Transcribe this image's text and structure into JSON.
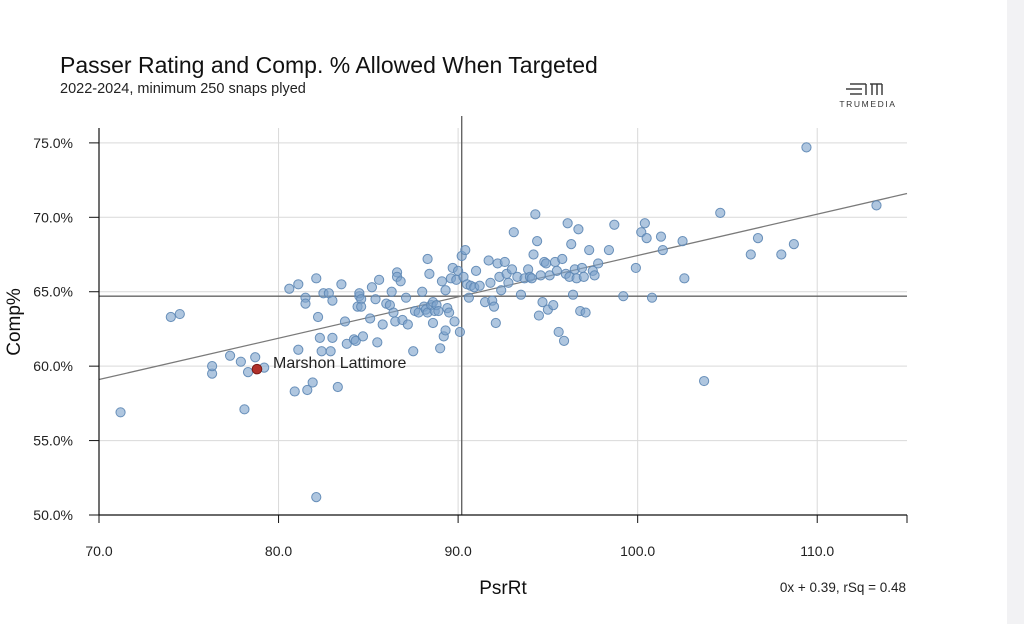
{
  "header": {
    "title": "Passer Rating and Comp. % Allowed When Targeted",
    "subtitle": "2022-2024, minimum 250 snaps plyed",
    "brand": "TRUMEDIA"
  },
  "colors": {
    "point": "#7ea3cb",
    "highlight": "#b0302a",
    "gridline": "#d9d9d9",
    "reference": "#666666"
  },
  "chart_data": {
    "type": "scatter",
    "xlabel": "PsrRt",
    "ylabel": "Comp%",
    "xlim": [
      70,
      115
    ],
    "ylim": [
      50,
      76
    ],
    "xticks": [
      {
        "value": 70,
        "label": "70.0"
      },
      {
        "value": 80,
        "label": "80.0"
      },
      {
        "value": 90,
        "label": "90.0"
      },
      {
        "value": 100,
        "label": "100.0"
      },
      {
        "value": 110,
        "label": "110.0"
      }
    ],
    "yticks": [
      {
        "value": 50,
        "label": "50.0%"
      },
      {
        "value": 55,
        "label": "55.0%"
      },
      {
        "value": 60,
        "label": "60.0%"
      },
      {
        "value": 65,
        "label": "65.0%"
      },
      {
        "value": 70,
        "label": "70.0%"
      },
      {
        "value": 75,
        "label": "75.0%"
      }
    ],
    "grid": true,
    "mean_lines": {
      "x": 90.2,
      "y": 64.7
    },
    "trendline": {
      "x": [
        70,
        115
      ],
      "y": [
        59.1,
        71.6
      ]
    },
    "fit_label": "0x + 0.39, rSq = 0.48",
    "highlight": {
      "label": "Marshon Lattimore",
      "x": 78.8,
      "y": 59.8
    },
    "points": [
      [
        71.2,
        56.9
      ],
      [
        74.0,
        63.3
      ],
      [
        74.5,
        63.5
      ],
      [
        76.3,
        59.5
      ],
      [
        76.3,
        60.0
      ],
      [
        77.3,
        60.7
      ],
      [
        77.9,
        60.3
      ],
      [
        78.1,
        57.1
      ],
      [
        78.3,
        59.6
      ],
      [
        78.7,
        60.6
      ],
      [
        79.2,
        59.9
      ],
      [
        80.6,
        65.2
      ],
      [
        80.9,
        58.3
      ],
      [
        81.1,
        61.1
      ],
      [
        81.1,
        65.5
      ],
      [
        81.5,
        64.6
      ],
      [
        81.5,
        64.2
      ],
      [
        81.6,
        58.4
      ],
      [
        81.9,
        58.9
      ],
      [
        82.1,
        65.9
      ],
      [
        82.1,
        51.2
      ],
      [
        82.2,
        63.3
      ],
      [
        82.3,
        61.9
      ],
      [
        82.4,
        61.0
      ],
      [
        82.5,
        64.9
      ],
      [
        82.8,
        64.9
      ],
      [
        82.9,
        61.0
      ],
      [
        83.0,
        64.4
      ],
      [
        83.0,
        61.9
      ],
      [
        83.3,
        58.6
      ],
      [
        83.5,
        65.5
      ],
      [
        83.7,
        63.0
      ],
      [
        83.8,
        61.5
      ],
      [
        84.2,
        61.8
      ],
      [
        84.3,
        61.7
      ],
      [
        84.4,
        64.0
      ],
      [
        84.5,
        64.7
      ],
      [
        84.5,
        64.9
      ],
      [
        84.6,
        64.5
      ],
      [
        84.6,
        64.0
      ],
      [
        84.7,
        62.0
      ],
      [
        85.1,
        63.2
      ],
      [
        85.2,
        65.3
      ],
      [
        85.4,
        64.5
      ],
      [
        85.5,
        61.6
      ],
      [
        85.6,
        65.8
      ],
      [
        85.8,
        62.8
      ],
      [
        86.0,
        64.2
      ],
      [
        86.2,
        64.1
      ],
      [
        86.3,
        65.0
      ],
      [
        86.4,
        63.6
      ],
      [
        86.5,
        63.0
      ],
      [
        86.6,
        66.3
      ],
      [
        86.6,
        66.0
      ],
      [
        86.8,
        65.7
      ],
      [
        86.9,
        63.1
      ],
      [
        87.1,
        64.6
      ],
      [
        87.2,
        62.8
      ],
      [
        87.5,
        61.0
      ],
      [
        87.6,
        63.7
      ],
      [
        87.8,
        63.6
      ],
      [
        88.0,
        65.0
      ],
      [
        88.1,
        64.0
      ],
      [
        88.2,
        63.8
      ],
      [
        88.3,
        67.2
      ],
      [
        88.3,
        63.6
      ],
      [
        88.4,
        66.2
      ],
      [
        88.5,
        64.1
      ],
      [
        88.6,
        64.3
      ],
      [
        88.6,
        62.9
      ],
      [
        88.7,
        63.7
      ],
      [
        88.8,
        64.1
      ],
      [
        88.9,
        63.7
      ],
      [
        89.0,
        61.2
      ],
      [
        89.1,
        65.7
      ],
      [
        89.2,
        62.0
      ],
      [
        89.3,
        65.1
      ],
      [
        89.3,
        62.4
      ],
      [
        89.4,
        63.9
      ],
      [
        89.5,
        63.6
      ],
      [
        89.6,
        65.9
      ],
      [
        89.7,
        66.6
      ],
      [
        89.8,
        63.0
      ],
      [
        89.9,
        65.8
      ],
      [
        90.0,
        66.4
      ],
      [
        90.1,
        62.3
      ],
      [
        90.2,
        67.4
      ],
      [
        90.3,
        66.0
      ],
      [
        90.4,
        67.8
      ],
      [
        90.5,
        65.5
      ],
      [
        90.6,
        64.6
      ],
      [
        90.7,
        65.4
      ],
      [
        90.9,
        65.3
      ],
      [
        91.0,
        66.4
      ],
      [
        91.2,
        65.4
      ],
      [
        91.5,
        64.3
      ],
      [
        91.7,
        67.1
      ],
      [
        91.8,
        65.6
      ],
      [
        91.9,
        64.4
      ],
      [
        92.0,
        64.0
      ],
      [
        92.1,
        62.9
      ],
      [
        92.2,
        66.9
      ],
      [
        92.3,
        66.0
      ],
      [
        92.4,
        65.1
      ],
      [
        92.6,
        67.0
      ],
      [
        92.7,
        66.2
      ],
      [
        92.8,
        65.6
      ],
      [
        93.0,
        66.5
      ],
      [
        93.1,
        69.0
      ],
      [
        93.3,
        66.0
      ],
      [
        93.5,
        64.8
      ],
      [
        93.7,
        65.9
      ],
      [
        93.9,
        66.5
      ],
      [
        94.0,
        66.0
      ],
      [
        94.1,
        65.9
      ],
      [
        94.2,
        67.5
      ],
      [
        94.3,
        70.2
      ],
      [
        94.4,
        68.4
      ],
      [
        94.5,
        63.4
      ],
      [
        94.6,
        66.1
      ],
      [
        94.7,
        64.3
      ],
      [
        94.8,
        67.0
      ],
      [
        94.9,
        66.9
      ],
      [
        95.0,
        63.8
      ],
      [
        95.1,
        66.1
      ],
      [
        95.3,
        64.1
      ],
      [
        95.4,
        67.0
      ],
      [
        95.5,
        66.4
      ],
      [
        95.6,
        62.3
      ],
      [
        95.8,
        67.2
      ],
      [
        95.9,
        61.7
      ],
      [
        96.0,
        66.2
      ],
      [
        96.1,
        69.6
      ],
      [
        96.2,
        66.0
      ],
      [
        96.3,
        68.2
      ],
      [
        96.4,
        64.8
      ],
      [
        96.5,
        66.5
      ],
      [
        96.6,
        65.9
      ],
      [
        96.7,
        69.2
      ],
      [
        96.8,
        63.7
      ],
      [
        96.9,
        66.6
      ],
      [
        97.0,
        66.0
      ],
      [
        97.1,
        63.6
      ],
      [
        97.3,
        67.8
      ],
      [
        97.5,
        66.4
      ],
      [
        97.6,
        66.1
      ],
      [
        97.8,
        66.9
      ],
      [
        98.4,
        67.8
      ],
      [
        98.7,
        69.5
      ],
      [
        99.2,
        64.7
      ],
      [
        99.9,
        66.6
      ],
      [
        100.2,
        69.0
      ],
      [
        100.4,
        69.6
      ],
      [
        100.5,
        68.6
      ],
      [
        100.8,
        64.6
      ],
      [
        101.3,
        68.7
      ],
      [
        101.4,
        67.8
      ],
      [
        102.5,
        68.4
      ],
      [
        102.6,
        65.9
      ],
      [
        103.7,
        59.0
      ],
      [
        104.6,
        70.3
      ],
      [
        106.3,
        67.5
      ],
      [
        106.7,
        68.6
      ],
      [
        108.0,
        67.5
      ],
      [
        108.7,
        68.2
      ],
      [
        109.4,
        74.7
      ],
      [
        113.3,
        70.8
      ]
    ]
  }
}
